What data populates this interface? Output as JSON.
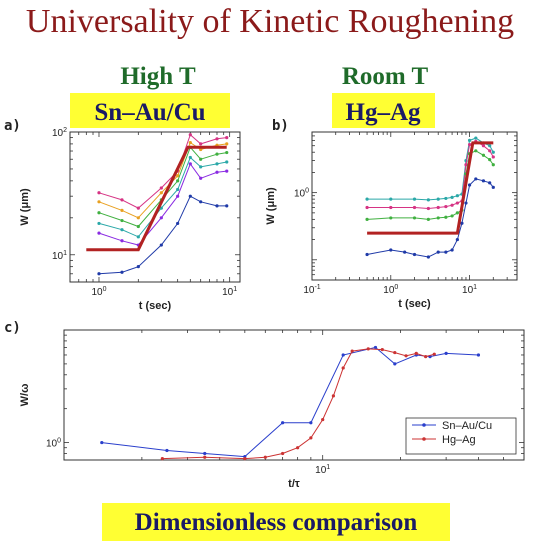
{
  "title": "Universality of Kinetic Roughening",
  "headings": {
    "left": "High T",
    "right": "Room T"
  },
  "materials": {
    "left": "Sn–Au/Cu",
    "right": "Hg–Ag"
  },
  "bottom_label": "Dimensionless comparison",
  "colors": {
    "title": "#8b1a1a",
    "heading": "#1f6b2a",
    "material_text": "#1a1a66",
    "highlight": "#ffff33",
    "fit_line": "#b22222"
  },
  "chart_data": [
    {
      "panel": "a)",
      "type": "line",
      "xlabel": "t (sec)",
      "ylabel": "W (μm)",
      "xscale": "log",
      "yscale": "log",
      "xlim": [
        0.6,
        12
      ],
      "ylim": [
        6,
        100
      ],
      "x_ticks": [
        {
          "v": 1,
          "label": "10^0"
        },
        {
          "v": 10,
          "label": "10^1"
        }
      ],
      "y_ticks": [
        {
          "v": 10,
          "label": "10^1"
        },
        {
          "v": 100,
          "label": "10^2"
        }
      ],
      "grid": false,
      "legend": "none",
      "series": [
        {
          "color": "#d63384",
          "x": [
            1,
            1.5,
            2,
            3,
            4,
            5,
            6,
            8,
            9.5
          ],
          "y": [
            32,
            28,
            24,
            35,
            48,
            95,
            80,
            88,
            90
          ]
        },
        {
          "color": "#e8a020",
          "x": [
            1,
            1.5,
            2,
            3,
            4,
            5,
            6,
            8,
            9.5
          ],
          "y": [
            27,
            23,
            20,
            32,
            44,
            82,
            72,
            78,
            80
          ]
        },
        {
          "color": "#40b040",
          "x": [
            1,
            1.5,
            2,
            3,
            4,
            5,
            6,
            8,
            9.5
          ],
          "y": [
            22,
            19,
            17,
            28,
            40,
            75,
            60,
            66,
            68
          ]
        },
        {
          "color": "#2aa8a8",
          "x": [
            1,
            1.5,
            2,
            3,
            4,
            5,
            6,
            8,
            9.5
          ],
          "y": [
            18,
            16,
            14,
            24,
            34,
            62,
            52,
            55,
            57
          ]
        },
        {
          "color": "#8a2be2",
          "x": [
            1,
            1.5,
            2,
            3,
            4,
            5,
            6,
            8,
            9.5
          ],
          "y": [
            15,
            13,
            12,
            20,
            30,
            55,
            42,
            47,
            48
          ]
        },
        {
          "color": "#1f3aa8",
          "x": [
            1,
            1.5,
            2,
            3,
            4,
            5,
            6,
            8,
            9.5
          ],
          "y": [
            7,
            7.2,
            8,
            12,
            18,
            30,
            27,
            25,
            25
          ]
        }
      ],
      "fit_line": {
        "x": [
          0.8,
          2,
          4.8,
          9.5
        ],
        "y": [
          11,
          11,
          75,
          75
        ]
      }
    },
    {
      "panel": "b)",
      "type": "line",
      "xlabel": "t (sec)",
      "ylabel": "W (μm)",
      "xscale": "log",
      "yscale": "log",
      "xlim": [
        0.1,
        40
      ],
      "ylim": [
        0.05,
        8
      ],
      "x_ticks": [
        {
          "v": 0.1,
          "label": "10^-1"
        },
        {
          "v": 1,
          "label": "10^0"
        },
        {
          "v": 10,
          "label": "10^1"
        }
      ],
      "y_ticks": [
        {
          "v": 1,
          "label": "10^0"
        }
      ],
      "grid": false,
      "legend": "none",
      "series": [
        {
          "color": "#2aa8a8",
          "x": [
            0.5,
            1,
            2,
            3,
            4,
            5,
            6,
            7,
            8,
            9,
            10,
            12,
            15,
            18,
            20
          ],
          "y": [
            0.8,
            0.8,
            0.8,
            0.78,
            0.8,
            0.82,
            0.85,
            0.9,
            0.95,
            3.0,
            6.0,
            6.5,
            5.5,
            5.0,
            4.0
          ]
        },
        {
          "color": "#d63384",
          "x": [
            0.5,
            1,
            2,
            3,
            4,
            5,
            6,
            7,
            8,
            9,
            10,
            12,
            15,
            18,
            20
          ],
          "y": [
            0.6,
            0.6,
            0.6,
            0.58,
            0.6,
            0.62,
            0.65,
            0.7,
            0.75,
            2.6,
            5.2,
            5.8,
            5.0,
            4.2,
            3.4
          ]
        },
        {
          "color": "#40b040",
          "x": [
            0.5,
            1,
            2,
            3,
            4,
            5,
            6,
            7,
            8,
            9,
            10,
            12,
            15,
            18,
            20
          ],
          "y": [
            0.4,
            0.42,
            0.42,
            0.4,
            0.42,
            0.43,
            0.45,
            0.5,
            0.55,
            1.9,
            3.8,
            4.2,
            3.6,
            3.1,
            2.6
          ]
        },
        {
          "color": "#1f3aa8",
          "x": [
            0.5,
            1,
            1.5,
            2,
            3,
            4,
            5,
            6,
            7,
            8,
            9,
            10,
            12,
            15,
            18,
            20
          ],
          "y": [
            0.12,
            0.14,
            0.13,
            0.12,
            0.11,
            0.13,
            0.13,
            0.14,
            0.2,
            0.35,
            0.7,
            1.3,
            1.6,
            1.5,
            1.4,
            1.2
          ]
        }
      ],
      "fit_line": {
        "x": [
          0.5,
          7,
          11,
          20
        ],
        "y": [
          0.25,
          0.25,
          5.5,
          5.5
        ]
      }
    },
    {
      "panel": "c)",
      "type": "line",
      "xlabel": "t/τ",
      "ylabel": "W/ω",
      "xscale": "log",
      "yscale": "log",
      "xlim": [
        1,
        60
      ],
      "ylim": [
        0.7,
        10
      ],
      "x_ticks": [
        {
          "v": 10,
          "label": "10^1"
        }
      ],
      "y_ticks": [
        {
          "v": 1,
          "label": "10^0"
        }
      ],
      "grid": false,
      "legend": "bottom-right",
      "series": [
        {
          "name": "Sn–Au/Cu",
          "color": "#2a3fcc",
          "x": [
            1.4,
            2.5,
            3.5,
            5,
            7,
            9,
            12,
            16,
            19,
            23,
            26,
            30,
            40
          ],
          "y": [
            1.0,
            0.85,
            0.8,
            0.75,
            1.5,
            1.5,
            6,
            7,
            5,
            6,
            5.8,
            6.2,
            6
          ]
        },
        {
          "name": "Hg–Ag",
          "color": "#cc3333",
          "x": [
            2.4,
            3.5,
            5,
            6,
            7,
            8,
            9,
            10,
            11,
            12,
            13,
            15,
            17,
            19,
            21,
            23,
            25,
            27
          ],
          "y": [
            0.72,
            0.74,
            0.72,
            0.74,
            0.8,
            0.9,
            1.1,
            1.6,
            2.6,
            4.6,
            6.5,
            6.8,
            6.7,
            6.3,
            5.9,
            6.2,
            5.8,
            6.1
          ]
        }
      ]
    }
  ]
}
